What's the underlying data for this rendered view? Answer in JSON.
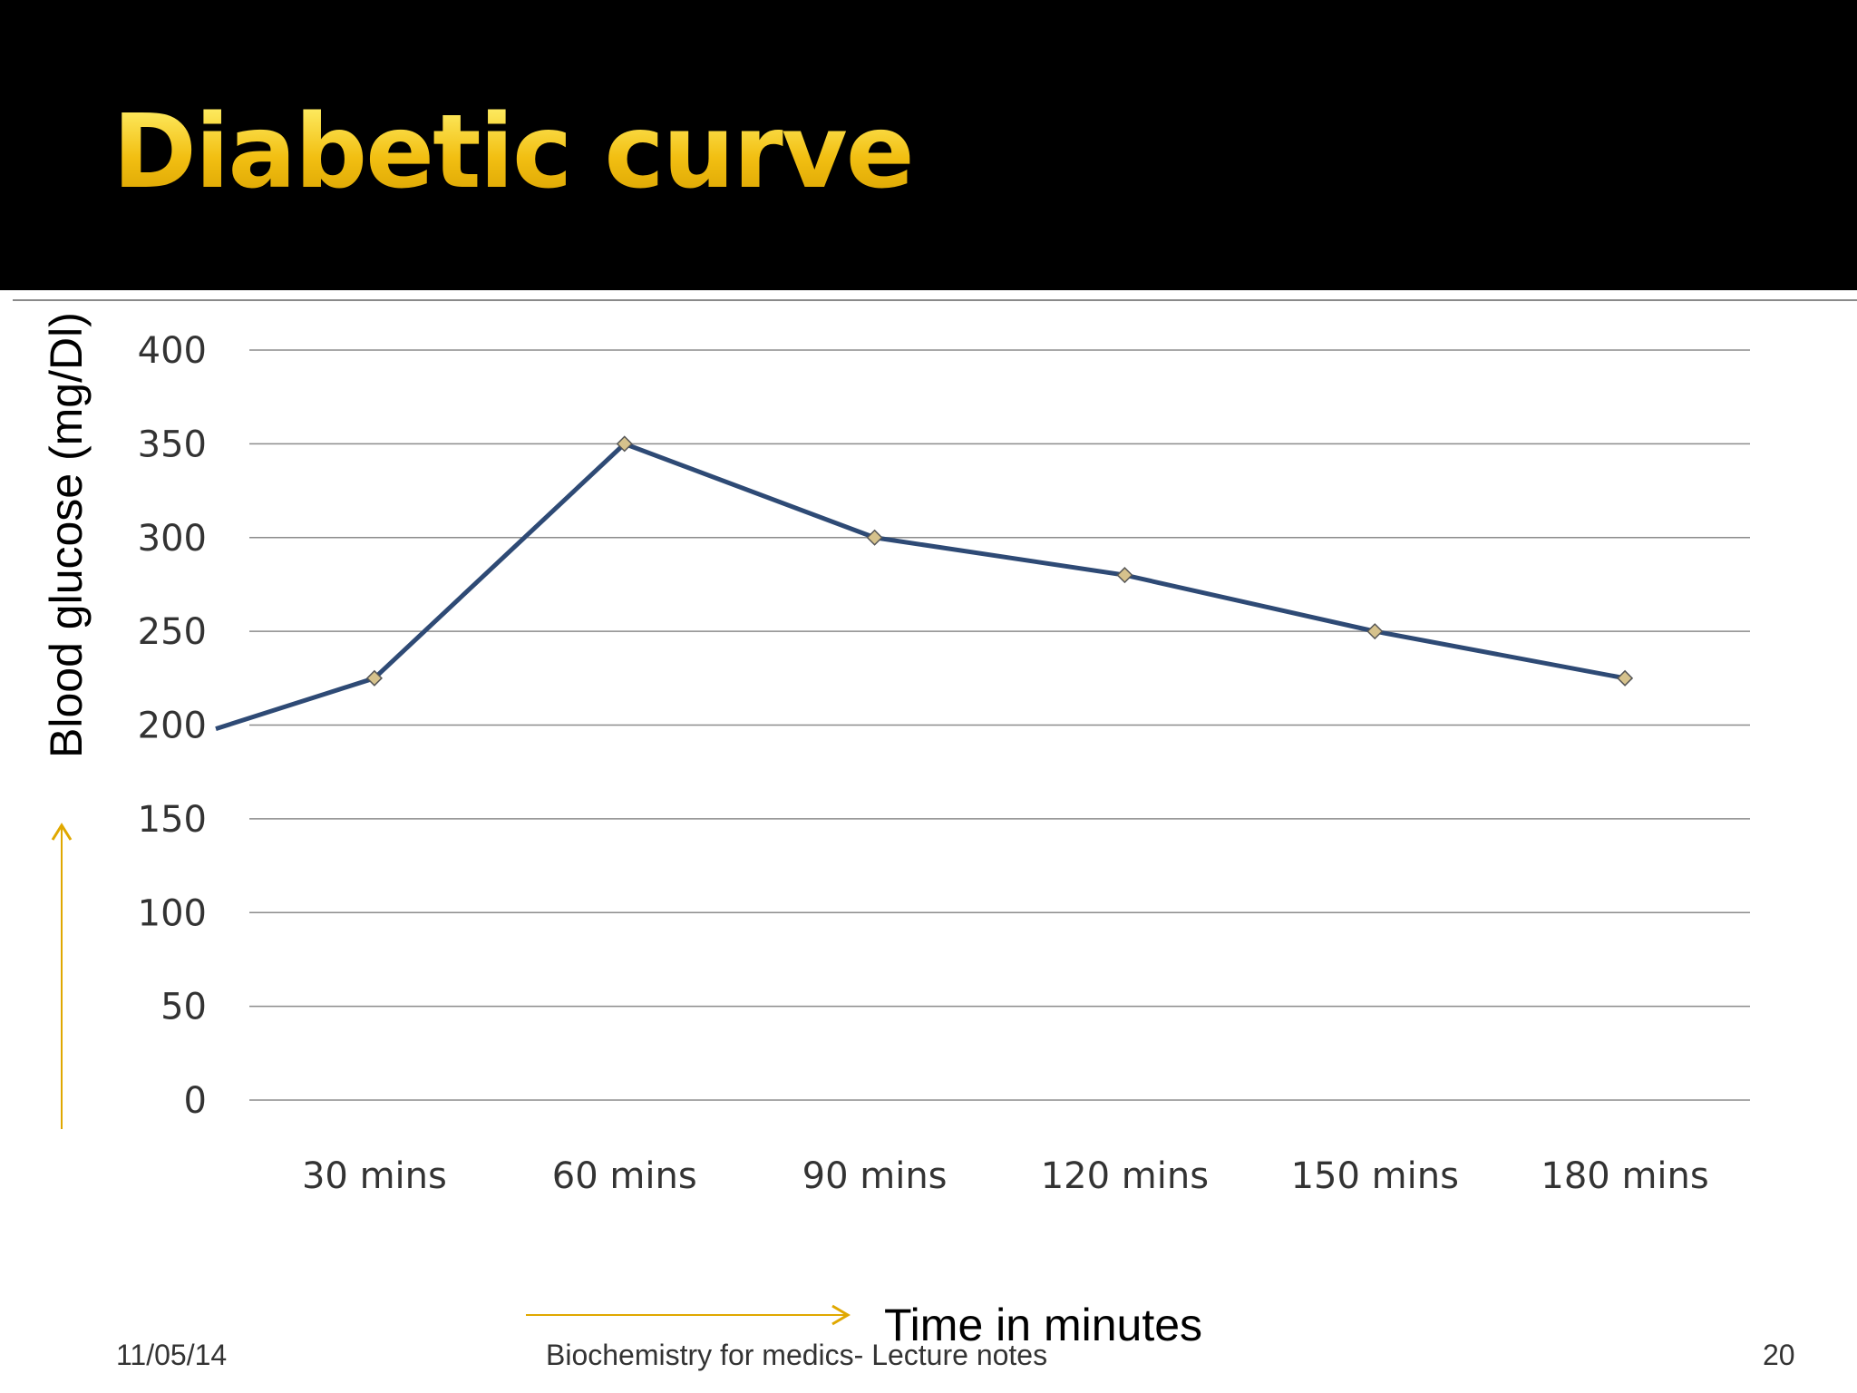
{
  "slide": {
    "title": "Diabetic curve",
    "footer_date": "11/05/14",
    "footer_center": "Biochemistry for medics- Lecture notes",
    "page_number": "20"
  },
  "colors": {
    "title_gold": "#f2bf12",
    "line": "#2e4a75",
    "marker": "#d6c28c",
    "arrow": "#e0a800",
    "grid": "#8c8c8c"
  },
  "chart_data": {
    "type": "line",
    "categories": [
      "30 mins",
      "60 mins",
      "90 mins",
      "120 mins",
      "150 mins",
      "180 mins"
    ],
    "series": [
      {
        "values": [
          225,
          350,
          300,
          280,
          250,
          225
        ],
        "start_value": 198
      }
    ],
    "title": "",
    "xlabel": "Time in minutes",
    "ylabel": "Blood glucose (mg/Dl)",
    "ylim": [
      0,
      400
    ],
    "yticks": [
      0,
      50,
      100,
      150,
      200,
      250,
      300,
      350,
      400
    ],
    "grid": true,
    "legend": "none"
  }
}
